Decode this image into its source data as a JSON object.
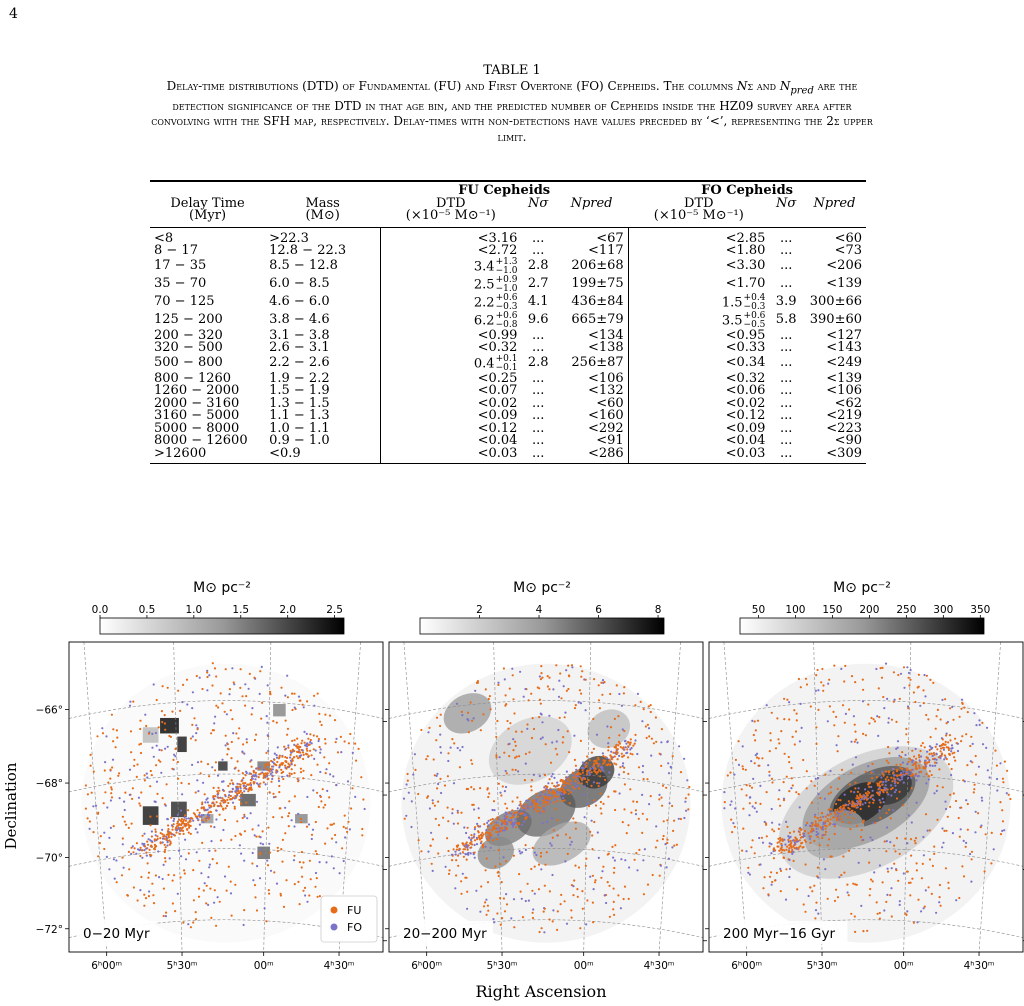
{
  "page_number": "4",
  "table": {
    "title": "TABLE 1",
    "caption_html": "Delay-time distributions (DTD) of Fundamental (FU) and First Overtone (FO) Cepheids. The columns <i>N</i>σ and <i>N<sub>pred</sub></i> are the detection significance of the DTD in that age bin, and the predicted number of Cepheids inside the HZ09 survey area after convolving with the SFH map, respectively. Delay-times with non-detections have values preceded by ‘&lt;’, representing the 2σ upper limit.",
    "group_fu": "FU Cepheids",
    "group_fo": "FO Cepheids",
    "col_delay": "Delay Time",
    "col_delay_unit": "(Myr)",
    "col_mass": "Mass",
    "col_mass_unit": "(M⊙)",
    "col_dtd": "DTD",
    "col_dtd_unit": "(×10⁻⁵ M⊙⁻¹)",
    "col_nsigma": "Nσ",
    "col_npred": "Npred",
    "rows": [
      {
        "delay": "<8",
        "mass": ">22.3",
        "fu_dtd": "<3.16",
        "fu_nsig": "...",
        "fu_npred": "<67",
        "fo_dtd": "<2.85",
        "fo_nsig": "...",
        "fo_npred": "<60"
      },
      {
        "delay": "8 − 17",
        "mass": "12.8 − 22.3",
        "fu_dtd": "<2.72",
        "fu_nsig": "...",
        "fu_npred": "<117",
        "fo_dtd": "<1.80",
        "fo_nsig": "...",
        "fo_npred": "<73"
      },
      {
        "delay": "17 − 35",
        "mass": "8.5 − 12.8",
        "fu_dtd": "3.4",
        "fu_err_up": "+1.3",
        "fu_err_lo": "−1.0",
        "fu_nsig": "2.8",
        "fu_npred": "206±68",
        "fo_dtd": "<3.30",
        "fo_nsig": "...",
        "fo_npred": "<206"
      },
      {
        "delay": "35 − 70",
        "mass": "6.0 − 8.5",
        "fu_dtd": "2.5",
        "fu_err_up": "+0.9",
        "fu_err_lo": "−1.0",
        "fu_nsig": "2.7",
        "fu_npred": "199±75",
        "fo_dtd": "<1.70",
        "fo_nsig": "...",
        "fo_npred": "<139"
      },
      {
        "delay": "70 − 125",
        "mass": "4.6 − 6.0",
        "fu_dtd": "2.2",
        "fu_err_up": "+0.6",
        "fu_err_lo": "−0.3",
        "fu_nsig": "4.1",
        "fu_npred": "436±84",
        "fo_dtd": "1.5",
        "fo_err_up": "+0.4",
        "fo_err_lo": "−0.3",
        "fo_nsig": "3.9",
        "fo_npred": "300±66"
      },
      {
        "delay": "125 − 200",
        "mass": "3.8 − 4.6",
        "fu_dtd": "6.2",
        "fu_err_up": "+0.6",
        "fu_err_lo": "−0.8",
        "fu_nsig": "9.6",
        "fu_npred": "665±79",
        "fo_dtd": "3.5",
        "fo_err_up": "+0.6",
        "fo_err_lo": "−0.5",
        "fo_nsig": "5.8",
        "fo_npred": "390±60"
      },
      {
        "delay": "200 − 320",
        "mass": "3.1 − 3.8",
        "fu_dtd": "<0.99",
        "fu_nsig": "...",
        "fu_npred": "<134",
        "fo_dtd": "<0.95",
        "fo_nsig": "...",
        "fo_npred": "<127"
      },
      {
        "delay": "320 − 500",
        "mass": "2.6 − 3.1",
        "fu_dtd": "<0.32",
        "fu_nsig": "...",
        "fu_npred": "<138",
        "fo_dtd": "<0.33",
        "fo_nsig": "...",
        "fo_npred": "<143"
      },
      {
        "delay": "500 − 800",
        "mass": "2.2 − 2.6",
        "fu_dtd": "0.4",
        "fu_err_up": "+0.1",
        "fu_err_lo": "−0.1",
        "fu_nsig": "2.8",
        "fu_npred": "256±87",
        "fo_dtd": "<0.34",
        "fo_nsig": "...",
        "fo_npred": "<249"
      },
      {
        "delay": "800 − 1260",
        "mass": "1.9 − 2.2",
        "fu_dtd": "<0.25",
        "fu_nsig": "...",
        "fu_npred": "<106",
        "fo_dtd": "<0.32",
        "fo_nsig": "...",
        "fo_npred": "<139"
      },
      {
        "delay": "1260 − 2000",
        "mass": "1.5 − 1.9",
        "fu_dtd": "<0.07",
        "fu_nsig": "...",
        "fu_npred": "<132",
        "fo_dtd": "<0.06",
        "fo_nsig": "...",
        "fo_npred": "<106"
      },
      {
        "delay": "2000 − 3160",
        "mass": "1.3 − 1.5",
        "fu_dtd": "<0.02",
        "fu_nsig": "...",
        "fu_npred": "<60",
        "fo_dtd": "<0.02",
        "fo_nsig": "...",
        "fo_npred": "<62"
      },
      {
        "delay": "3160 − 5000",
        "mass": "1.1 − 1.3",
        "fu_dtd": "<0.09",
        "fu_nsig": "...",
        "fu_npred": "<160",
        "fo_dtd": "<0.12",
        "fo_nsig": "...",
        "fo_npred": "<219"
      },
      {
        "delay": "5000 − 8000",
        "mass": "1.0 − 1.1",
        "fu_dtd": "<0.12",
        "fu_nsig": "...",
        "fu_npred": "<292",
        "fo_dtd": "<0.09",
        "fo_nsig": "...",
        "fo_npred": "<223"
      },
      {
        "delay": "8000 − 12600",
        "mass": "0.9 − 1.0",
        "fu_dtd": "<0.04",
        "fu_nsig": "...",
        "fu_npred": "<91",
        "fo_dtd": "<0.04",
        "fo_nsig": "...",
        "fo_npred": "<90"
      },
      {
        "delay": ">12600",
        "mass": "<0.9",
        "fu_dtd": "<0.03",
        "fu_nsig": "...",
        "fu_npred": "<286",
        "fo_dtd": "<0.03",
        "fo_nsig": "...",
        "fo_npred": "<309"
      }
    ]
  },
  "figure": {
    "ylabel": "Declination",
    "xlabel": "Right Ascension",
    "colorbar_unit": "M⊙ pc⁻²",
    "dec_ticks": [
      "−66°",
      "−68°",
      "−70°",
      "−72°"
    ],
    "ra_ticks": [
      "6ʰ00ᵐ",
      "5ʰ30ᵐ",
      "00ᵐ",
      "4ʰ30ᵐ"
    ],
    "legend": [
      {
        "name": "FU",
        "color": "#e66c1a"
      },
      {
        "name": "FO",
        "color": "#7b73c9"
      }
    ],
    "panels": [
      {
        "label": "0−20 Myr",
        "cbar_ticks": [
          "0.0",
          "0.5",
          "1.0",
          "1.5",
          "2.0",
          "2.5"
        ],
        "cbar_min": 0,
        "cbar_max": 2.6
      },
      {
        "label": "20−200 Myr",
        "cbar_ticks": [
          "2",
          "4",
          "6",
          "8"
        ],
        "cbar_min": 0,
        "cbar_max": 8.2
      },
      {
        "label": "200 Myr−16 Gyr",
        "cbar_ticks": [
          "50",
          "100",
          "150",
          "200",
          "250",
          "300",
          "350"
        ],
        "cbar_min": 25,
        "cbar_max": 355
      }
    ]
  },
  "chart_data": [
    {
      "type": "heatmap",
      "title": "0−20 Myr",
      "xlabel": "Right Ascension",
      "ylabel": "Declination",
      "colorbar_label": "M⊙ pc⁻²",
      "colorbar_range": [
        0,
        2.6
      ],
      "series": [
        {
          "name": "FU"
        },
        {
          "name": "FO"
        }
      ]
    },
    {
      "type": "heatmap",
      "title": "20−200 Myr",
      "xlabel": "Right Ascension",
      "colorbar_label": "M⊙ pc⁻²",
      "colorbar_range": [
        0,
        8.2
      ],
      "series": [
        {
          "name": "FU"
        },
        {
          "name": "FO"
        }
      ]
    },
    {
      "type": "heatmap",
      "title": "200 Myr−16 Gyr",
      "xlabel": "Right Ascension",
      "colorbar_label": "M⊙ pc⁻²",
      "colorbar_range": [
        25,
        355
      ],
      "series": [
        {
          "name": "FU"
        },
        {
          "name": "FO"
        }
      ]
    }
  ]
}
